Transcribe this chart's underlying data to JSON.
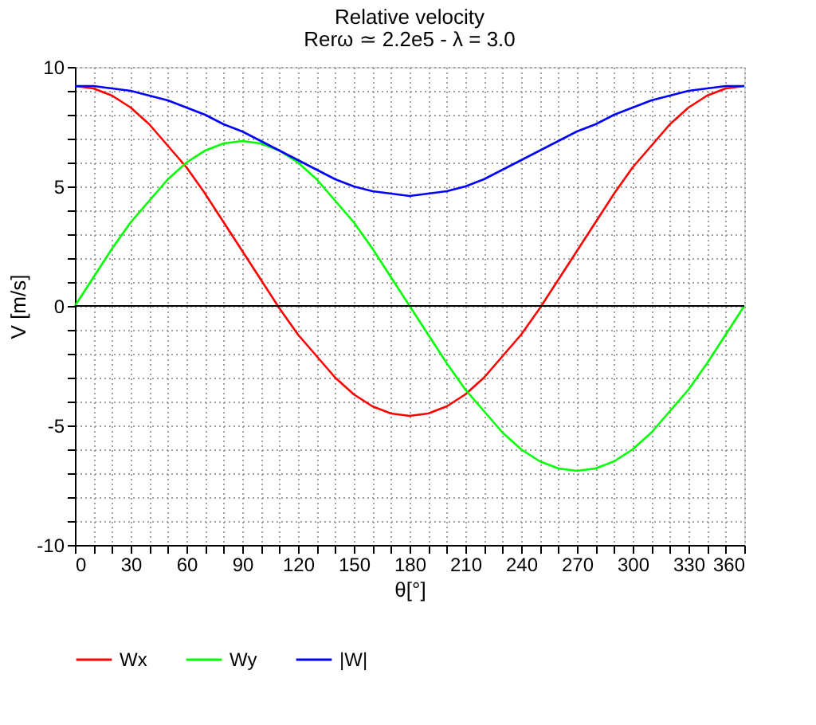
{
  "chart_data": {
    "type": "line",
    "title": "Relative velocity",
    "subtitle": "Rerω ≃ 2.2e5 - λ = 3.0",
    "xlabel": "θ[°]",
    "ylabel": "V [m/s]",
    "x": [
      0,
      10,
      20,
      30,
      40,
      50,
      60,
      70,
      80,
      90,
      100,
      110,
      120,
      130,
      140,
      150,
      160,
      170,
      180,
      190,
      200,
      210,
      220,
      230,
      240,
      250,
      260,
      270,
      280,
      290,
      300,
      310,
      320,
      330,
      340,
      350,
      360
    ],
    "series": [
      {
        "name": "Wx",
        "color": "#ff0000",
        "values": [
          9.2,
          9.1,
          8.8,
          8.3,
          7.6,
          6.7,
          5.8,
          4.7,
          3.5,
          2.3,
          1.1,
          -0.1,
          -1.2,
          -2.1,
          -3.0,
          -3.7,
          -4.2,
          -4.5,
          -4.6,
          -4.5,
          -4.2,
          -3.7,
          -3.0,
          -2.1,
          -1.2,
          -0.1,
          1.1,
          2.3,
          3.5,
          4.7,
          5.8,
          6.7,
          7.6,
          8.3,
          8.8,
          9.1,
          9.2
        ]
      },
      {
        "name": "Wy",
        "color": "#00ff00",
        "values": [
          0,
          1.2,
          2.4,
          3.5,
          4.4,
          5.3,
          6.0,
          6.5,
          6.8,
          6.9,
          6.8,
          6.5,
          6.0,
          5.3,
          4.4,
          3.5,
          2.4,
          1.2,
          0,
          -1.2,
          -2.4,
          -3.5,
          -4.4,
          -5.3,
          -6.0,
          -6.5,
          -6.8,
          -6.9,
          -6.8,
          -6.5,
          -6.0,
          -5.3,
          -4.4,
          -3.5,
          -2.4,
          -1.2,
          0
        ]
      },
      {
        "name": "|W|",
        "color": "#0000ff",
        "values": [
          9.2,
          9.2,
          9.1,
          9.0,
          8.8,
          8.6,
          8.3,
          8.0,
          7.6,
          7.3,
          6.9,
          6.5,
          6.1,
          5.7,
          5.3,
          5.0,
          4.8,
          4.7,
          4.6,
          4.7,
          4.8,
          5.0,
          5.3,
          5.7,
          6.1,
          6.5,
          6.9,
          7.3,
          7.6,
          8.0,
          8.3,
          8.6,
          8.8,
          9.0,
          9.1,
          9.2,
          9.2
        ]
      }
    ],
    "xlim": [
      0,
      360
    ],
    "xticks": [
      0,
      {
        "value": 10,
        "label": null
      },
      {
        "value": 20,
        "label": null
      },
      30,
      {
        "value": 40,
        "label": null
      },
      {
        "value": 50,
        "label": null
      },
      60,
      {
        "value": 70,
        "label": null
      },
      {
        "value": 80,
        "label": null
      },
      90,
      {
        "value": 100,
        "label": null
      },
      {
        "value": 110,
        "label": null
      },
      120,
      {
        "value": 130,
        "label": null
      },
      {
        "value": 140,
        "label": null
      },
      150,
      {
        "value": 160,
        "label": null
      },
      {
        "value": 170,
        "label": null
      },
      180,
      {
        "value": 190,
        "label": null
      },
      {
        "value": 200,
        "label": null
      },
      210,
      {
        "value": 220,
        "label": null
      },
      {
        "value": 230,
        "label": null
      },
      240,
      {
        "value": 250,
        "label": null
      },
      {
        "value": 260,
        "label": null
      },
      270,
      {
        "value": 280,
        "label": null
      },
      {
        "value": 290,
        "label": null
      },
      300,
      {
        "value": 310,
        "label": null
      },
      {
        "value": 320,
        "label": null
      },
      330,
      {
        "value": 340,
        "label": null
      },
      {
        "value": 350,
        "label": null
      },
      360
    ],
    "ylim": [
      -10,
      10
    ],
    "yticks": [
      -10,
      {
        "value": -9,
        "label": null
      },
      {
        "value": -8,
        "label": null
      },
      {
        "value": -7,
        "label": null
      },
      {
        "value": -6,
        "label": null
      },
      -5,
      {
        "value": -4,
        "label": null
      },
      {
        "value": -3,
        "label": null
      },
      {
        "value": -2,
        "label": null
      },
      {
        "value": -1,
        "label": null
      },
      0,
      {
        "value": 1,
        "label": null
      },
      {
        "value": 2,
        "label": null
      },
      {
        "value": 3,
        "label": null
      },
      {
        "value": 4,
        "label": null
      },
      5,
      {
        "value": 6,
        "label": null
      },
      {
        "value": 7,
        "label": null
      },
      {
        "value": 8,
        "label": null
      },
      {
        "value": 9,
        "label": null
      },
      10
    ],
    "ref_lines": [
      {
        "axis": "y",
        "value": 0,
        "color": "#000000"
      }
    ],
    "grid": true,
    "legend": "bottom",
    "marker": "none",
    "line_style": "solid"
  }
}
